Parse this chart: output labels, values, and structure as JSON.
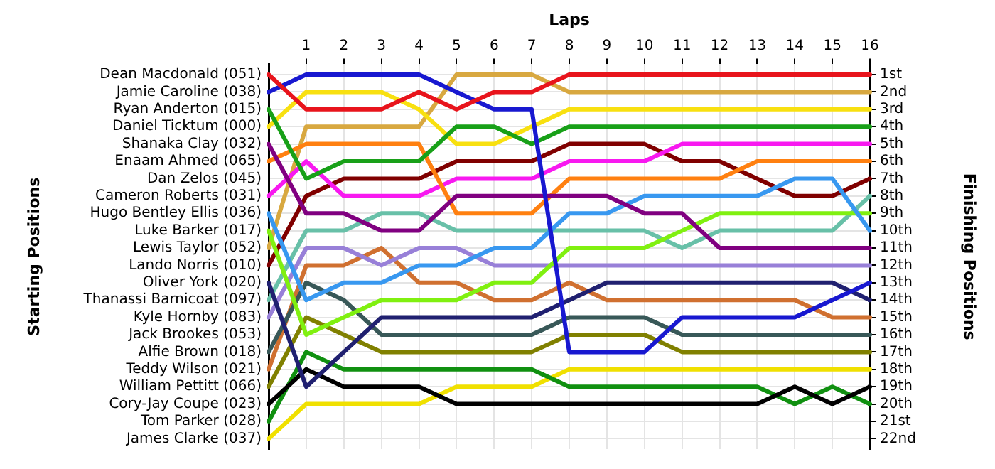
{
  "chart_data": {
    "type": "line",
    "xlabel": "Laps",
    "ylabel": "Finishing Positions",
    "annotations": [
      "Starting Positions",
      "Dan Zelos (045)",
      "Jack Brookes (053)"
    ],
    "xlim": [
      0,
      16
    ],
    "xticks": [
      1,
      2,
      3,
      4,
      5,
      6,
      7,
      8,
      9,
      10,
      11,
      12,
      13,
      14,
      15,
      16
    ],
    "x": [
      0,
      1,
      2,
      3,
      4,
      5,
      6,
      7,
      8,
      9,
      10,
      11,
      12,
      13,
      14,
      15,
      16
    ],
    "ylim": [
      22.6,
      0.4
    ],
    "yticks": [
      {
        "value": 1,
        "label": "1st"
      },
      {
        "value": 2,
        "label": "2nd"
      },
      {
        "value": 3,
        "label": "3rd"
      },
      {
        "value": 4,
        "label": "4th"
      },
      {
        "value": 5,
        "label": "5th"
      },
      {
        "value": 6,
        "label": "6th"
      },
      {
        "value": 7,
        "label": "7th"
      },
      {
        "value": 8,
        "label": "8th"
      },
      {
        "value": 9,
        "label": "9th"
      },
      {
        "value": 10,
        "label": "10th"
      },
      {
        "value": 11,
        "label": "11th"
      },
      {
        "value": 12,
        "label": "12th"
      },
      {
        "value": 13,
        "label": "13th"
      },
      {
        "value": 14,
        "label": "14th"
      },
      {
        "value": 15,
        "label": "15th"
      },
      {
        "value": 16,
        "label": "16th"
      },
      {
        "value": 17,
        "label": "17th"
      },
      {
        "value": 18,
        "label": "18th"
      },
      {
        "value": 19,
        "label": "19th"
      },
      {
        "value": 20,
        "label": "20th"
      },
      {
        "value": 21,
        "label": "21st"
      },
      {
        "value": 22,
        "label": "22nd"
      }
    ],
    "grid": true,
    "legend": false,
    "marker": "none",
    "line_style": "solid",
    "series": [
      {
        "name": "Dean Macdonald (051)",
        "color": "#e8141c",
        "values": [
          1,
          3,
          3,
          3,
          2,
          3,
          2,
          2,
          1,
          1,
          1,
          1,
          1,
          1,
          1,
          1,
          1
        ]
      },
      {
        "name": "Jamie Caroline (038)",
        "color": "#1818d0",
        "values": [
          2,
          1,
          1,
          1,
          1,
          2,
          3,
          3,
          17,
          17,
          17,
          15,
          15,
          15,
          15,
          14,
          13
        ]
      },
      {
        "name": "Ryan Anderton (015)",
        "color": "#18a018",
        "values": [
          3,
          7,
          6,
          6,
          6,
          4,
          4,
          5,
          4,
          4,
          4,
          4,
          4,
          4,
          4,
          4,
          4
        ]
      },
      {
        "name": "Daniel Ticktum (000)",
        "color": "#f8e010",
        "values": [
          4,
          2,
          2,
          2,
          3,
          5,
          5,
          4,
          3,
          3,
          3,
          3,
          3,
          3,
          3,
          3,
          3
        ]
      },
      {
        "name": "Shanaka Clay (032)",
        "color": "#800080",
        "values": [
          5,
          9,
          9,
          10,
          10,
          8,
          8,
          8,
          8,
          8,
          9,
          9,
          11,
          11,
          11,
          11,
          11
        ]
      },
      {
        "name": "Enaam Ahmed (065)",
        "color": "#ff8010",
        "values": [
          6,
          5,
          5,
          5,
          5,
          9,
          9,
          9,
          7,
          7,
          7,
          7,
          7,
          6,
          6,
          6,
          6
        ]
      },
      {
        "name": "Cameron Roberts (031)",
        "color": "#f818f0",
        "values": [
          8,
          6,
          8,
          8,
          8,
          7,
          7,
          7,
          6,
          6,
          6,
          5,
          5,
          5,
          5,
          5,
          5
        ]
      },
      {
        "name": "Hugo Bentley Ellis (036)",
        "color": "#3898f0",
        "values": [
          9,
          14,
          13,
          13,
          12,
          12,
          11,
          11,
          9,
          9,
          8,
          8,
          8,
          8,
          7,
          7,
          10
        ]
      },
      {
        "name": "Luke Barker (017)",
        "color": "#80f010",
        "values": [
          10,
          16,
          15,
          14,
          14,
          14,
          13,
          13,
          11,
          11,
          11,
          10,
          9,
          9,
          9,
          9,
          9
        ]
      },
      {
        "name": "Lewis Taylor (052)",
        "color": "#d8a840",
        "values": [
          11,
          4,
          4,
          4,
          4,
          1,
          1,
          1,
          2,
          2,
          2,
          2,
          2,
          2,
          2,
          2,
          2
        ]
      },
      {
        "name": "Lando Norris (010)",
        "color": "#800000",
        "values": [
          12,
          8,
          7,
          7,
          7,
          6,
          6,
          6,
          5,
          5,
          5,
          6,
          6,
          7,
          8,
          8,
          7
        ]
      },
      {
        "name": "Oliver York (020)",
        "color": "#202070",
        "values": [
          13,
          19,
          17,
          15,
          15,
          15,
          15,
          15,
          14,
          13,
          13,
          13,
          13,
          13,
          13,
          13,
          14
        ]
      },
      {
        "name": "Thanassi Barnicoat (097)",
        "color": "#68c0a8",
        "values": [
          14,
          10,
          10,
          9,
          9,
          10,
          10,
          10,
          10,
          10,
          10,
          11,
          10,
          10,
          10,
          10,
          8
        ]
      },
      {
        "name": "Kyle Hornby (083)",
        "color": "#9880d8",
        "values": [
          15,
          11,
          11,
          12,
          11,
          11,
          12,
          12,
          12,
          12,
          12,
          12,
          12,
          12,
          12,
          12,
          12
        ]
      },
      {
        "name": "Alfie Brown (018)",
        "color": "#385858",
        "values": [
          17,
          13,
          14,
          16,
          16,
          16,
          16,
          16,
          15,
          15,
          15,
          16,
          16,
          16,
          16,
          16,
          16
        ]
      },
      {
        "name": "Teddy Wilson (021)",
        "color": "#d07030",
        "values": [
          18,
          12,
          12,
          11,
          13,
          13,
          14,
          14,
          13,
          14,
          14,
          14,
          14,
          14,
          14,
          15,
          15
        ]
      },
      {
        "name": "William Pettitt (066)",
        "color": "#808000",
        "values": [
          19,
          15,
          16,
          17,
          17,
          17,
          17,
          17,
          16,
          16,
          16,
          17,
          17,
          17,
          17,
          17,
          17
        ]
      },
      {
        "name": "Cory-Jay Coupe (023)",
        "color": "#000000",
        "values": [
          20,
          18,
          19,
          19,
          19,
          20,
          20,
          20,
          20,
          20,
          20,
          20,
          20,
          20,
          19,
          20,
          19
        ]
      },
      {
        "name": "Tom Parker (028)",
        "color": "#109010",
        "values": [
          21,
          17,
          18,
          18,
          18,
          18,
          18,
          18,
          19,
          19,
          19,
          19,
          19,
          19,
          20,
          19,
          20
        ]
      },
      {
        "name": "James Clarke (037)",
        "color": "#f0e000",
        "values": [
          22,
          20,
          20,
          20,
          20,
          19,
          19,
          19,
          18,
          18,
          18,
          18,
          18,
          18,
          18,
          18,
          18
        ]
      }
    ]
  }
}
